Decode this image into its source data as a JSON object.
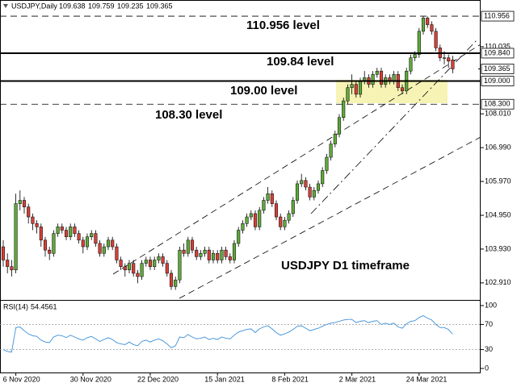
{
  "chart_data": {
    "type": "candlestick",
    "symbol": "USDJPY,Daily",
    "categories": [
      null,
      null,
      null,
      "6 Nov 2020",
      null,
      null,
      null,
      null,
      null,
      null,
      null,
      null,
      null,
      null,
      null,
      null,
      null,
      null,
      null,
      "30 Nov 2020",
      null,
      null,
      null,
      null,
      null,
      null,
      null,
      null,
      null,
      null,
      null,
      null,
      null,
      null,
      null,
      "22 Dec 2020",
      null,
      null,
      null,
      null,
      null,
      null,
      null,
      null,
      null,
      null,
      null,
      null,
      null,
      null,
      null,
      "15 Jan 2021",
      null,
      null,
      null,
      null,
      null,
      null,
      null,
      null,
      null,
      null,
      null,
      null,
      null,
      null,
      null,
      "8 Feb 2021",
      null,
      null,
      null,
      null,
      null,
      null,
      null,
      null,
      null,
      null,
      null,
      null,
      null,
      null,
      null,
      "2 Mar 2021",
      null,
      null,
      null,
      null,
      null,
      null,
      null,
      null,
      null,
      null,
      null,
      null,
      null,
      null,
      null,
      "24 Mar 2021",
      null,
      null,
      null,
      null,
      null,
      null,
      null,
      null
    ],
    "ohlc": [
      [
        104.0,
        104.2,
        103.4,
        103.6
      ],
      [
        103.6,
        103.8,
        103.2,
        103.4
      ],
      [
        103.4,
        103.6,
        103.1,
        103.3
      ],
      [
        103.3,
        105.6,
        103.2,
        105.3
      ],
      [
        105.3,
        105.7,
        105.1,
        105.4
      ],
      [
        105.4,
        105.5,
        105.0,
        105.2
      ],
      [
        105.2,
        105.3,
        104.7,
        104.9
      ],
      [
        104.9,
        105.0,
        104.5,
        104.7
      ],
      [
        104.7,
        104.8,
        104.4,
        104.6
      ],
      [
        104.6,
        104.7,
        104.0,
        104.2
      ],
      [
        104.2,
        104.3,
        103.7,
        103.9
      ],
      [
        103.9,
        104.0,
        103.6,
        103.8
      ],
      [
        103.8,
        104.5,
        103.7,
        104.4
      ],
      [
        104.4,
        104.7,
        104.3,
        104.6
      ],
      [
        104.6,
        104.7,
        104.4,
        104.5
      ],
      [
        104.5,
        104.6,
        104.2,
        104.3
      ],
      [
        104.3,
        104.7,
        104.2,
        104.6
      ],
      [
        104.6,
        104.7,
        104.3,
        104.4
      ],
      [
        104.4,
        104.5,
        104.1,
        104.2
      ],
      [
        104.2,
        104.3,
        103.8,
        104.0
      ],
      [
        104.0,
        104.4,
        103.9,
        104.3
      ],
      [
        104.3,
        104.5,
        104.2,
        104.4
      ],
      [
        104.4,
        104.5,
        104.0,
        104.1
      ],
      [
        104.1,
        104.2,
        103.7,
        103.8
      ],
      [
        103.8,
        104.1,
        103.7,
        104.0
      ],
      [
        104.0,
        104.3,
        103.9,
        104.2
      ],
      [
        104.2,
        104.3,
        103.9,
        104.0
      ],
      [
        104.0,
        104.1,
        103.5,
        103.6
      ],
      [
        103.6,
        103.7,
        103.3,
        103.4
      ],
      [
        103.4,
        103.5,
        103.1,
        103.3
      ],
      [
        103.3,
        103.6,
        103.2,
        103.5
      ],
      [
        103.5,
        103.6,
        103.1,
        103.2
      ],
      [
        103.2,
        103.3,
        102.9,
        103.1
      ],
      [
        103.1,
        103.6,
        103.0,
        103.5
      ],
      [
        103.5,
        103.7,
        103.4,
        103.6
      ],
      [
        103.6,
        103.7,
        103.3,
        103.4
      ],
      [
        103.4,
        103.7,
        103.3,
        103.6
      ],
      [
        103.6,
        103.8,
        103.5,
        103.7
      ],
      [
        103.7,
        103.8,
        103.4,
        103.5
      ],
      [
        103.5,
        103.6,
        103.1,
        103.2
      ],
      [
        103.2,
        103.3,
        102.7,
        102.8
      ],
      [
        102.8,
        103.1,
        102.7,
        103.0
      ],
      [
        103.0,
        104.0,
        102.9,
        103.9
      ],
      [
        103.9,
        104.1,
        103.7,
        103.8
      ],
      [
        103.8,
        104.3,
        103.7,
        104.2
      ],
      [
        104.2,
        104.3,
        103.8,
        103.9
      ],
      [
        103.9,
        104.0,
        103.6,
        103.7
      ],
      [
        103.7,
        103.9,
        103.6,
        103.8
      ],
      [
        103.8,
        104.0,
        103.7,
        103.9
      ],
      [
        103.9,
        104.0,
        103.5,
        103.6
      ],
      [
        103.6,
        103.9,
        103.5,
        103.8
      ],
      [
        103.8,
        103.9,
        103.5,
        103.6
      ],
      [
        103.6,
        104.0,
        103.5,
        103.9
      ],
      [
        103.9,
        104.0,
        103.6,
        103.7
      ],
      [
        103.7,
        103.8,
        103.5,
        103.6
      ],
      [
        103.6,
        104.2,
        103.5,
        104.1
      ],
      [
        104.1,
        104.6,
        104.0,
        104.5
      ],
      [
        104.5,
        104.8,
        104.4,
        104.7
      ],
      [
        104.7,
        105.0,
        104.6,
        104.9
      ],
      [
        104.9,
        105.1,
        104.8,
        105.0
      ],
      [
        105.0,
        105.1,
        104.5,
        104.6
      ],
      [
        104.6,
        105.2,
        104.5,
        105.1
      ],
      [
        105.1,
        105.5,
        105.0,
        105.4
      ],
      [
        105.4,
        105.8,
        105.3,
        105.6
      ],
      [
        105.6,
        105.7,
        105.2,
        105.3
      ],
      [
        105.3,
        105.4,
        104.8,
        104.9
      ],
      [
        104.9,
        105.0,
        104.5,
        104.6
      ],
      [
        104.6,
        104.9,
        104.5,
        104.8
      ],
      [
        104.8,
        105.1,
        104.7,
        105.0
      ],
      [
        105.0,
        105.5,
        104.9,
        105.4
      ],
      [
        105.4,
        106.0,
        105.3,
        105.9
      ],
      [
        105.9,
        106.2,
        105.8,
        106.0
      ],
      [
        106.0,
        106.1,
        105.7,
        105.8
      ],
      [
        105.8,
        105.9,
        105.4,
        105.5
      ],
      [
        105.5,
        105.8,
        105.4,
        105.7
      ],
      [
        105.7,
        106.0,
        105.6,
        105.9
      ],
      [
        105.9,
        106.4,
        105.8,
        106.3
      ],
      [
        106.3,
        106.8,
        106.2,
        106.7
      ],
      [
        106.7,
        107.2,
        106.6,
        107.1
      ],
      [
        107.1,
        107.5,
        107.0,
        107.4
      ],
      [
        107.4,
        108.0,
        107.3,
        107.9
      ],
      [
        107.9,
        108.5,
        107.8,
        108.4
      ],
      [
        108.4,
        108.9,
        108.3,
        108.8
      ],
      [
        108.8,
        109.2,
        108.6,
        108.9
      ],
      [
        108.9,
        109.0,
        108.5,
        108.6
      ],
      [
        108.6,
        109.1,
        108.5,
        109.0
      ],
      [
        109.0,
        109.3,
        108.9,
        109.1
      ],
      [
        109.1,
        109.2,
        108.8,
        108.9
      ],
      [
        108.9,
        109.3,
        108.8,
        109.2
      ],
      [
        109.2,
        109.4,
        109.1,
        109.3
      ],
      [
        109.3,
        109.4,
        108.8,
        108.9
      ],
      [
        108.9,
        109.2,
        108.8,
        109.1
      ],
      [
        109.1,
        109.2,
        108.9,
        109.0
      ],
      [
        109.0,
        109.3,
        108.9,
        109.2
      ],
      [
        109.2,
        109.3,
        108.7,
        108.8
      ],
      [
        108.8,
        108.9,
        108.6,
        108.7
      ],
      [
        108.7,
        109.4,
        108.6,
        109.3
      ],
      [
        109.3,
        109.8,
        109.2,
        109.7
      ],
      [
        109.7,
        109.9,
        109.6,
        109.8
      ],
      [
        109.8,
        110.6,
        109.7,
        110.5
      ],
      [
        110.5,
        110.956,
        110.4,
        110.9
      ],
      [
        110.9,
        110.95,
        110.6,
        110.7
      ],
      [
        110.7,
        110.8,
        110.4,
        110.5
      ],
      [
        110.5,
        110.6,
        109.9,
        110.0
      ],
      [
        110.0,
        110.1,
        109.6,
        109.7
      ],
      [
        109.7,
        109.9,
        109.5,
        109.7
      ],
      [
        109.7,
        109.8,
        109.4,
        109.6
      ],
      [
        109.638,
        109.759,
        109.235,
        109.365
      ]
    ],
    "up_color": "#5fa83a",
    "down_color": "#d2413a",
    "ylim": [
      102.396,
      111.152
    ],
    "yticks": [
      110.035,
      {
        "value": 108.01,
        "label": "108.010"
      },
      {
        "value": 106.99,
        "label": "106.990"
      },
      {
        "value": 105.97,
        "label": "105.970"
      },
      {
        "value": 104.95,
        "label": "104.950"
      },
      {
        "value": 103.93,
        "label": "103.930"
      },
      {
        "value": 102.91,
        "label": "102.910"
      }
    ],
    "levels": [
      {
        "value": 110.956,
        "label": "110.956 level",
        "style": "dashed"
      },
      {
        "value": 109.84,
        "label": "109.84 level",
        "style": "solid",
        "axis_label": "109.840"
      },
      {
        "value": 109.0,
        "label": "109.00 level",
        "style": "solid",
        "axis_label": "109.000"
      },
      {
        "value": 108.3,
        "label": "108.30 level",
        "style": "dashed",
        "axis_label": "108.300"
      }
    ],
    "annotation": "USDJPY D1 timeframe",
    "rsi": {
      "type": "line",
      "label": "RSI(14)",
      "color": "#3a8fd9",
      "ylim": [
        0,
        100
      ],
      "yticks": [
        100,
        70,
        30,
        0
      ],
      "guides": [
        70,
        30
      ],
      "values": [
        30,
        27,
        26,
        65,
        66,
        60,
        55,
        52,
        51,
        45,
        42,
        41,
        50,
        53,
        52,
        49,
        53,
        50,
        47,
        45,
        49,
        51,
        47,
        43,
        46,
        49,
        46,
        41,
        39,
        38,
        42,
        38,
        36,
        43,
        45,
        42,
        45,
        47,
        44,
        39,
        33,
        36,
        50,
        49,
        54,
        50,
        47,
        48,
        50,
        46,
        48,
        46,
        50,
        48,
        47,
        53,
        58,
        60,
        62,
        63,
        57,
        63,
        66,
        68,
        63,
        57,
        53,
        55,
        58,
        62,
        67,
        68,
        64,
        60,
        62,
        64,
        67,
        70,
        72,
        73,
        75,
        77,
        78,
        78,
        73,
        75,
        76,
        73,
        75,
        76,
        70,
        72,
        70,
        72,
        66,
        64,
        71,
        75,
        76,
        81,
        84,
        80,
        77,
        70,
        65,
        65,
        62,
        54.4561
      ]
    }
  }
}
